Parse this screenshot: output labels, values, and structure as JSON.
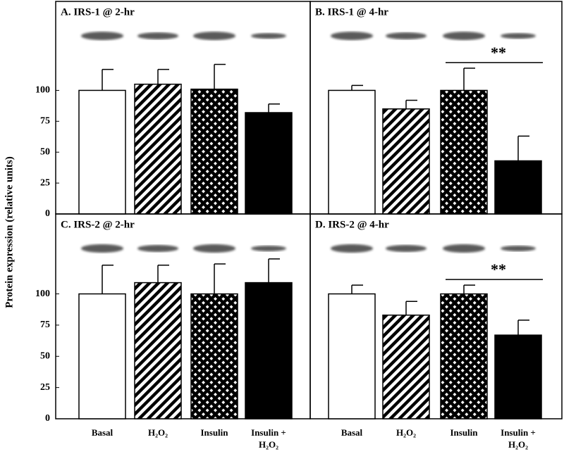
{
  "y_label": "Protein expression (relative units)",
  "chart_data": [
    {
      "type": "bar",
      "title": "A. IRS-1 @ 2-hr",
      "values": [
        100,
        105,
        101,
        82
      ],
      "errors": [
        17,
        12,
        20,
        7
      ],
      "fills": [
        "white",
        "hatch",
        "cross",
        "black"
      ],
      "ylim": [
        0,
        172
      ],
      "yticks": [
        0,
        25,
        50,
        75,
        100
      ]
    },
    {
      "type": "bar",
      "title": "B. IRS-1 @ 4-hr",
      "values": [
        100,
        85,
        100,
        43
      ],
      "errors": [
        4,
        7,
        18,
        20
      ],
      "fills": [
        "white",
        "hatch",
        "cross",
        "black"
      ],
      "ylim": [
        0,
        172
      ],
      "annotation": "**"
    },
    {
      "type": "bar",
      "title": "C. IRS-2 @ 2-hr",
      "categories": [
        "Basal",
        "H₂O₂",
        "Insulin",
        "Insulin + H₂O₂"
      ],
      "values": [
        100,
        109,
        100,
        109
      ],
      "errors": [
        23,
        14,
        24,
        19
      ],
      "fills": [
        "white",
        "hatch",
        "cross",
        "black"
      ],
      "ylim": [
        0,
        164
      ],
      "yticks": [
        0,
        25,
        50,
        75,
        100
      ]
    },
    {
      "type": "bar",
      "title": "D. IRS-2 @ 4-hr",
      "categories": [
        "Basal",
        "H₂O₂",
        "Insulin",
        "Insulin + H₂O₂"
      ],
      "values": [
        100,
        83,
        100,
        67
      ],
      "errors": [
        7,
        11,
        7,
        12
      ],
      "fills": [
        "white",
        "hatch",
        "cross",
        "black"
      ],
      "ylim": [
        0,
        164
      ],
      "annotation": "**"
    }
  ]
}
